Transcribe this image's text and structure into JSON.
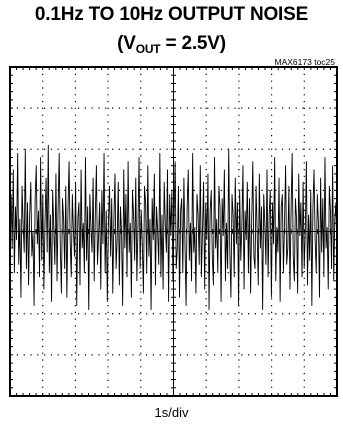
{
  "title": {
    "line1": "0.1Hz TO 10Hz OUTPUT NOISE",
    "prefix": "(V",
    "sub": "OUT",
    "suffix": " = 2.5V)"
  },
  "ref_label": "MAX6173 toc25",
  "chart_data": {
    "type": "line",
    "title": "0.1Hz TO 10Hz OUTPUT NOISE (VOUT = 2.5V)",
    "xlabel": "1s/div",
    "ylabel": "",
    "x_divisions": 10,
    "y_divisions": 8,
    "xlim": [
      0,
      10
    ],
    "ylim": [
      -4,
      4
    ],
    "grid": true,
    "series": [
      {
        "values": [
          0.1,
          0.9,
          -0.4,
          1.5,
          -1.0,
          0.6,
          -0.2,
          1.9,
          -0.8,
          0.3,
          -1.6,
          1.1,
          0.2,
          -0.5,
          2.0,
          -0.9,
          0.7,
          -1.3,
          0.4,
          1.2,
          -0.6,
          0.0,
          -1.8,
          0.8,
          1.6,
          -0.3,
          0.5,
          -1.1,
          1.8,
          -0.7,
          0.9,
          -1.4,
          0.2,
          1.3,
          -0.5,
          2.1,
          -1.0,
          0.4,
          -1.7,
          1.0,
          0.1,
          -0.8,
          1.4,
          -1.2,
          0.6,
          1.9,
          -0.4,
          -1.5,
          0.8,
          0.3,
          -0.9,
          1.1,
          -1.6,
          0.5,
          1.7,
          -0.2,
          -1.1,
          0.9,
          0.0,
          -0.6,
          1.2,
          -1.8,
          0.3,
          0.7,
          -1.3,
          1.5,
          -0.4,
          0.2,
          -1.0,
          1.8,
          -0.7,
          0.6,
          -1.9,
          0.9,
          0.1,
          -0.5,
          1.3,
          -1.2,
          0.4,
          1.6,
          -0.8,
          -0.1,
          0.7,
          -1.4,
          1.0,
          -0.3,
          1.9,
          -1.0,
          0.5,
          -1.7,
          0.2,
          1.1,
          -0.6,
          0.8,
          -1.5,
          0.3,
          1.4,
          -0.9,
          -0.2,
          1.2,
          -1.3,
          0.6,
          0.0,
          -1.8,
          1.5,
          -0.4,
          0.9,
          -1.1,
          1.7,
          -0.5,
          0.2,
          -1.6,
          1.0,
          0.4,
          -0.7,
          1.3,
          -1.2,
          0.1,
          1.8,
          -0.9,
          0.5,
          -0.3,
          -1.5,
          1.1,
          0.7,
          -1.0,
          1.6,
          -0.6,
          0.3,
          -1.9,
          0.8,
          -0.2,
          1.4,
          -1.3,
          0.6,
          0.0,
          -0.8,
          1.9,
          -1.1,
          0.4,
          -1.4,
          1.2,
          0.2,
          -0.5,
          1.5,
          -1.7,
          0.9,
          -0.1,
          1.0,
          -1.2,
          0.3,
          1.7,
          -0.9,
          -0.4,
          1.1,
          -1.6,
          0.5,
          0.8,
          -1.0,
          1.3,
          -0.3,
          -1.8,
          0.6,
          1.5,
          -0.7,
          0.2,
          -1.2,
          1.9,
          -0.5,
          0.1,
          -1.5,
          0.9,
          0.4,
          -0.8,
          1.6,
          -1.1,
          0.0,
          1.2,
          -1.4,
          0.7,
          -0.2,
          1.4,
          -1.9,
          0.5,
          1.0,
          -0.6,
          -1.3,
          1.8,
          -0.4,
          0.3,
          -1.0,
          1.1,
          0.6,
          -1.7,
          0.8,
          -0.1,
          1.5,
          -1.2,
          0.2,
          -0.9,
          2.0,
          -0.5,
          -1.6,
          0.9,
          0.4,
          -1.1,
          1.3,
          -0.3,
          0.7,
          -1.8,
          1.0,
          -0.7,
          0.1,
          1.6,
          -1.4,
          0.5,
          -0.2,
          1.2,
          -1.0,
          0.8,
          -1.5,
          0.3,
          1.7,
          -0.6,
          -0.9,
          1.1,
          0.0,
          -1.3,
          1.4,
          -0.4,
          0.6,
          -1.9,
          0.9,
          0.2,
          -0.8,
          1.5,
          -1.1,
          0.4,
          1.0,
          -1.6,
          0.7,
          -0.3,
          1.8,
          -1.2,
          0.1,
          -0.5,
          1.3,
          -1.7,
          0.6,
          0.9,
          -1.0,
          0.2,
          1.6,
          -0.8,
          -0.4,
          1.1,
          -1.4,
          0.5,
          1.9,
          -0.6,
          -1.2,
          0.8,
          0.3,
          -1.5,
          1.4,
          -0.1,
          0.7,
          -1.1,
          1.2,
          -0.9,
          0.0,
          1.7,
          -1.3,
          0.4,
          -0.7,
          1.0,
          -1.8,
          0.6,
          1.5,
          -0.2,
          -1.0,
          0.9,
          0.2,
          -1.6,
          1.3,
          -0.5,
          0.8,
          -1.1,
          1.8,
          -0.4,
          0.1,
          -1.4,
          1.1,
          0.5,
          -0.9,
          1.6,
          -1.2,
          0.3,
          0.7,
          -0.6
        ]
      }
    ]
  }
}
